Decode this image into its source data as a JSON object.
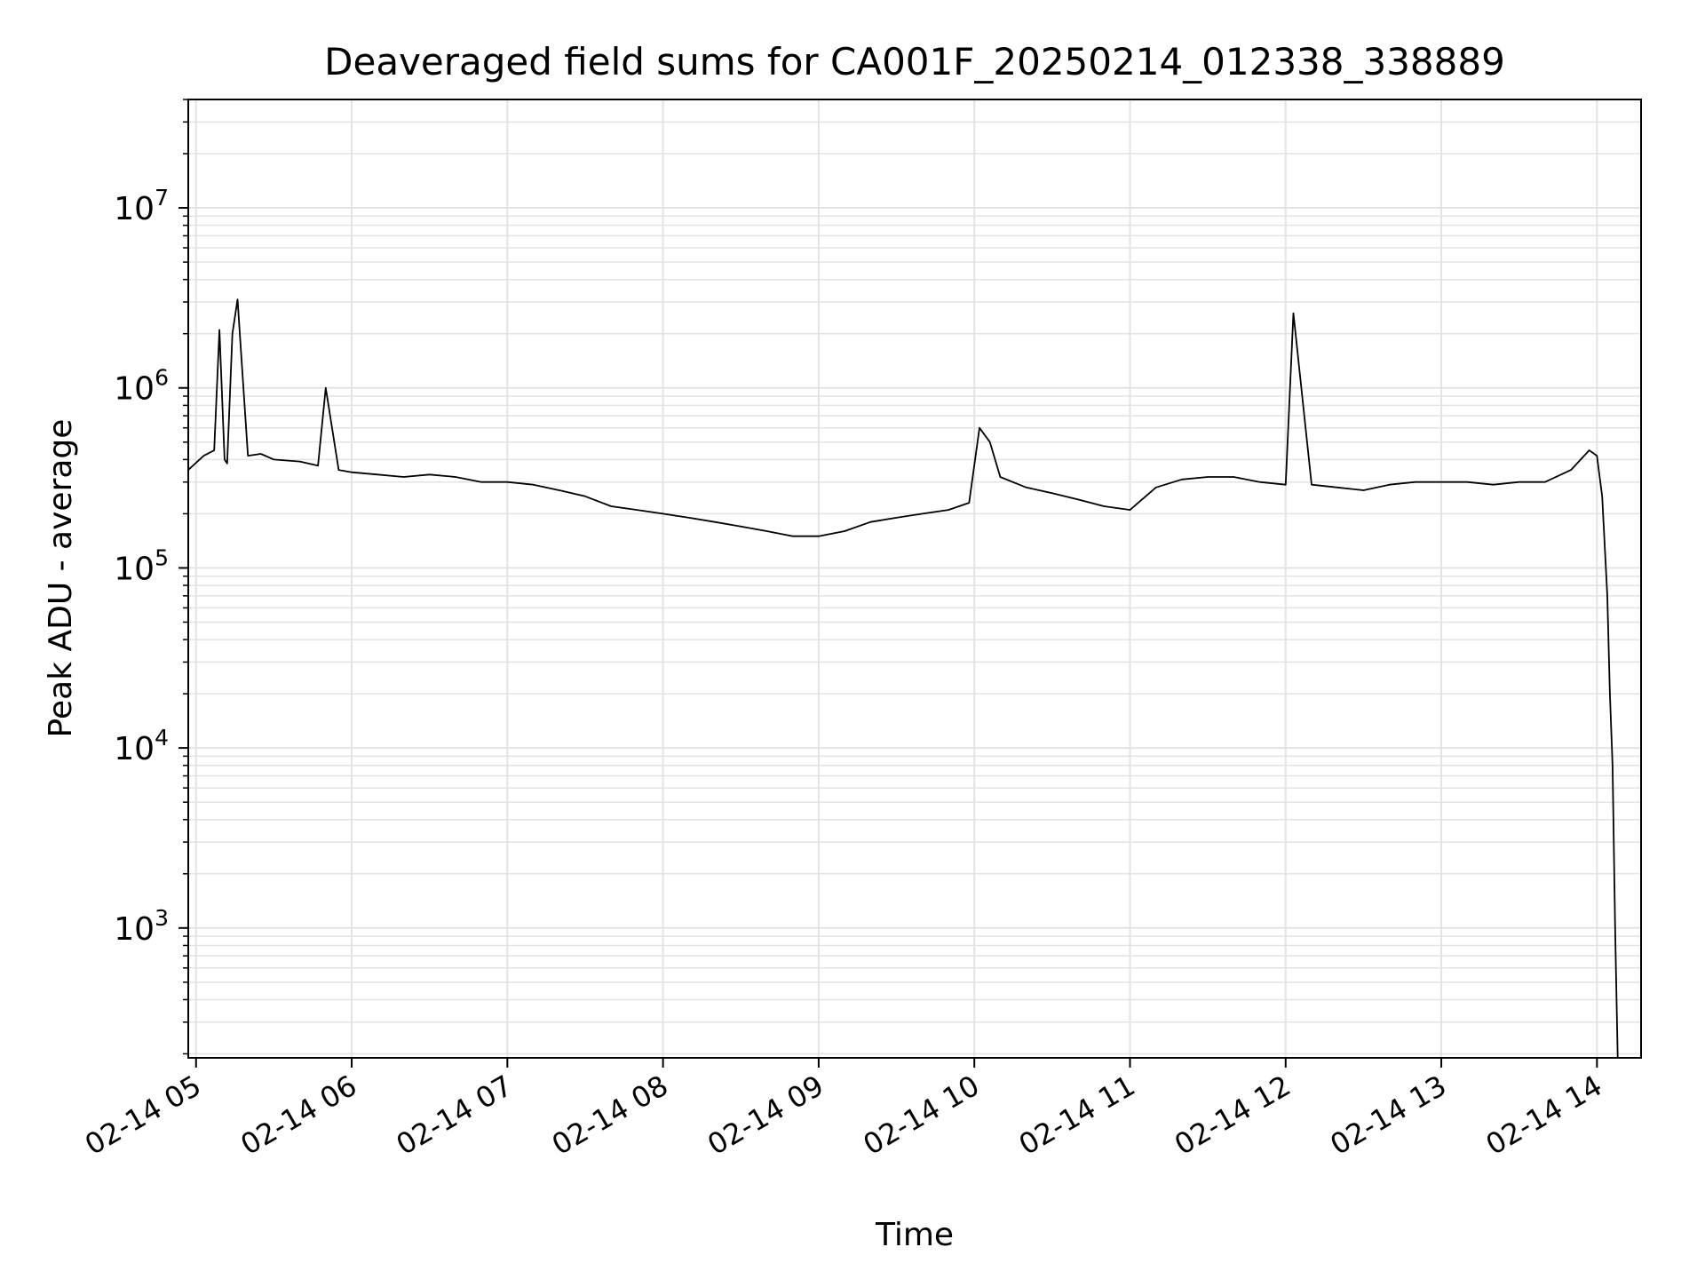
{
  "chart_data": {
    "type": "line",
    "title": "Deaveraged field sums for CA001F_20250214_012338_338889",
    "xlabel": "Time",
    "ylabel": "Peak ADU - average",
    "yscale": "log",
    "ylim": [
      190,
      40000000
    ],
    "xlim": [
      "2025-02-14 04:57",
      "2025-02-14 14:17"
    ],
    "grid": true,
    "x_ticks": [
      {
        "t": "2025-02-14 05:00",
        "label": "02-14 05"
      },
      {
        "t": "2025-02-14 06:00",
        "label": "02-14 06"
      },
      {
        "t": "2025-02-14 07:00",
        "label": "02-14 07"
      },
      {
        "t": "2025-02-14 08:00",
        "label": "02-14 08"
      },
      {
        "t": "2025-02-14 09:00",
        "label": "02-14 09"
      },
      {
        "t": "2025-02-14 10:00",
        "label": "02-14 10"
      },
      {
        "t": "2025-02-14 11:00",
        "label": "02-14 11"
      },
      {
        "t": "2025-02-14 12:00",
        "label": "02-14 12"
      },
      {
        "t": "2025-02-14 13:00",
        "label": "02-14 13"
      },
      {
        "t": "2025-02-14 14:00",
        "label": "02-14 14"
      }
    ],
    "y_ticks": [
      {
        "value": 1000,
        "base": "10",
        "exp": "3"
      },
      {
        "value": 10000,
        "base": "10",
        "exp": "4"
      },
      {
        "value": 100000,
        "base": "10",
        "exp": "5"
      },
      {
        "value": 1000000,
        "base": "10",
        "exp": "6"
      },
      {
        "value": 10000000,
        "base": "10",
        "exp": "7"
      }
    ],
    "series": [
      {
        "color": "#000000",
        "x": [
          "2025-02-14 04:57",
          "2025-02-14 05:03",
          "2025-02-14 05:07",
          "2025-02-14 05:09",
          "2025-02-14 05:11",
          "2025-02-14 05:12",
          "2025-02-14 05:14",
          "2025-02-14 05:16",
          "2025-02-14 05:20",
          "2025-02-14 05:25",
          "2025-02-14 05:30",
          "2025-02-14 05:40",
          "2025-02-14 05:47",
          "2025-02-14 05:50",
          "2025-02-14 05:55",
          "2025-02-14 06:00",
          "2025-02-14 06:10",
          "2025-02-14 06:20",
          "2025-02-14 06:30",
          "2025-02-14 06:40",
          "2025-02-14 06:50",
          "2025-02-14 07:00",
          "2025-02-14 07:10",
          "2025-02-14 07:20",
          "2025-02-14 07:30",
          "2025-02-14 07:40",
          "2025-02-14 07:50",
          "2025-02-14 08:00",
          "2025-02-14 08:10",
          "2025-02-14 08:20",
          "2025-02-14 08:30",
          "2025-02-14 08:40",
          "2025-02-14 08:50",
          "2025-02-14 09:00",
          "2025-02-14 09:10",
          "2025-02-14 09:20",
          "2025-02-14 09:30",
          "2025-02-14 09:40",
          "2025-02-14 09:50",
          "2025-02-14 09:58",
          "2025-02-14 10:02",
          "2025-02-14 10:06",
          "2025-02-14 10:10",
          "2025-02-14 10:20",
          "2025-02-14 10:30",
          "2025-02-14 10:40",
          "2025-02-14 10:50",
          "2025-02-14 11:00",
          "2025-02-14 11:10",
          "2025-02-14 11:20",
          "2025-02-14 11:30",
          "2025-02-14 11:40",
          "2025-02-14 11:50",
          "2025-02-14 12:00",
          "2025-02-14 12:03",
          "2025-02-14 12:10",
          "2025-02-14 12:20",
          "2025-02-14 12:30",
          "2025-02-14 12:40",
          "2025-02-14 12:50",
          "2025-02-14 13:00",
          "2025-02-14 13:10",
          "2025-02-14 13:20",
          "2025-02-14 13:30",
          "2025-02-14 13:40",
          "2025-02-14 13:50",
          "2025-02-14 13:57",
          "2025-02-14 14:00",
          "2025-02-14 14:02",
          "2025-02-14 14:04",
          "2025-02-14 14:05",
          "2025-02-14 14:06",
          "2025-02-14 14:07",
          "2025-02-14 14:08"
        ],
        "values": [
          350000,
          420000,
          450000,
          2100000,
          400000,
          380000,
          2000000,
          3100000,
          420000,
          430000,
          400000,
          390000,
          370000,
          1000000,
          350000,
          340000,
          330000,
          320000,
          330000,
          320000,
          300000,
          300000,
          290000,
          270000,
          250000,
          220000,
          210000,
          200000,
          190000,
          180000,
          170000,
          160000,
          150000,
          150000,
          160000,
          180000,
          190000,
          200000,
          210000,
          230000,
          600000,
          500000,
          320000,
          280000,
          260000,
          240000,
          220000,
          210000,
          280000,
          310000,
          320000,
          320000,
          300000,
          290000,
          2600000,
          290000,
          280000,
          270000,
          290000,
          300000,
          300000,
          300000,
          290000,
          300000,
          300000,
          350000,
          450000,
          420000,
          250000,
          70000,
          20000,
          8000,
          1000,
          190
        ]
      }
    ]
  }
}
